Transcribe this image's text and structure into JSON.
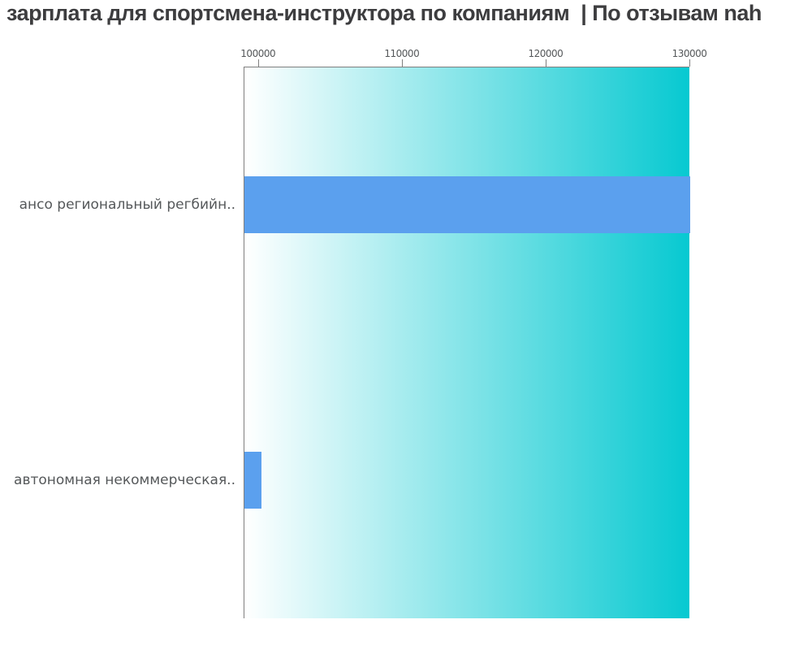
{
  "page": {
    "background": "#ffffff"
  },
  "chart_data": {
    "type": "bar",
    "orientation": "horizontal",
    "title": "зарплата для спортсмена-инструктора по компаниям  | По отзывам nah",
    "categories": [
      "ансо региональный регбийн..",
      "автономная некоммерческая.."
    ],
    "values": [
      130000,
      100170
    ],
    "xlim": [
      99000,
      130000
    ],
    "xticks": [
      100000,
      110000,
      120000,
      130000
    ],
    "xtick_labels": [
      "100000",
      "110000",
      "120000",
      "130000"
    ],
    "xlabel": "",
    "ylabel": "",
    "grid": false,
    "legend": false,
    "colors": {
      "bar": "#5ba0ee",
      "plot_bg_gradient_left": "#ffffff",
      "plot_bg_gradient_right": "#07c9d1",
      "axis_line": "#7f7f7f",
      "title_text": "#3d3d3f",
      "category_text": "#55585a",
      "tick_text": "#55585a"
    }
  }
}
